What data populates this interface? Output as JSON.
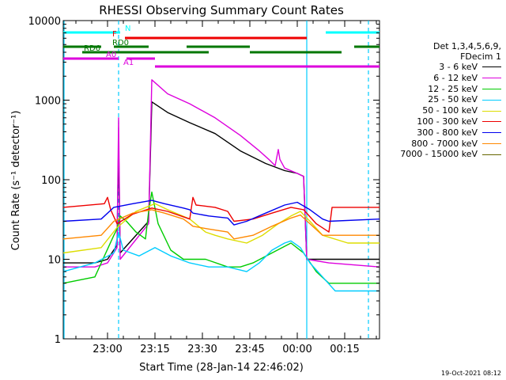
{
  "chart_data": {
    "type": "line",
    "title": "RHESSI Observing Summary Count Rates",
    "xlabel": "Start Time (28-Jan-14 22:46:02)",
    "ylabel": "Count Rate (s⁻¹ detector⁻¹)",
    "y_scale": "log",
    "ylim": [
      1,
      10000
    ],
    "xlim_minutes": [
      0,
      100
    ],
    "x_ticks": [
      {
        "min": 14,
        "label": "23:00"
      },
      {
        "min": 29,
        "label": "23:15"
      },
      {
        "min": 44,
        "label": "23:30"
      },
      {
        "min": 59,
        "label": "23:45"
      },
      {
        "min": 74,
        "label": "00:00"
      },
      {
        "min": 89,
        "label": "00:15"
      }
    ],
    "y_ticks": [
      {
        "value": 1,
        "label": "1"
      },
      {
        "value": 10,
        "label": "10"
      },
      {
        "value": 100,
        "label": "100"
      },
      {
        "value": 1000,
        "label": "1000"
      },
      {
        "value": 10000,
        "label": "10000"
      }
    ],
    "legend_header": [
      "Det 1,3,4,5,6,9,",
      "FDecim 1"
    ],
    "series": [
      {
        "name": "3 - 6 keV",
        "color": "#000000",
        "points": [
          [
            0,
            9
          ],
          [
            10,
            9
          ],
          [
            14,
            10
          ],
          [
            17,
            15
          ],
          [
            17.5,
            300
          ],
          [
            18,
            12
          ],
          [
            27,
            30
          ],
          [
            28,
            950
          ],
          [
            33,
            700
          ],
          [
            40,
            520
          ],
          [
            48,
            380
          ],
          [
            56,
            230
          ],
          [
            64,
            160
          ],
          [
            70,
            130
          ],
          [
            74,
            120
          ],
          [
            76,
            110
          ],
          [
            77,
            10
          ],
          [
            84,
            10
          ],
          [
            100,
            10
          ]
        ]
      },
      {
        "name": "6 - 12 keV",
        "color": "#dd00dd",
        "points": [
          [
            0,
            8
          ],
          [
            10,
            8
          ],
          [
            14,
            9
          ],
          [
            17,
            14
          ],
          [
            17.5,
            600
          ],
          [
            18,
            10
          ],
          [
            27,
            28
          ],
          [
            28,
            1800
          ],
          [
            33,
            1200
          ],
          [
            40,
            900
          ],
          [
            48,
            600
          ],
          [
            56,
            360
          ],
          [
            62,
            230
          ],
          [
            65,
            180
          ],
          [
            67,
            150
          ],
          [
            68,
            240
          ],
          [
            68.5,
            180
          ],
          [
            70,
            140
          ],
          [
            74,
            120
          ],
          [
            76,
            110
          ],
          [
            77,
            10
          ],
          [
            84,
            9
          ],
          [
            100,
            8
          ]
        ]
      },
      {
        "name": "12 - 25 keV",
        "color": "#00cc00",
        "points": [
          [
            0,
            5
          ],
          [
            10,
            6
          ],
          [
            16,
            20
          ],
          [
            17,
            24
          ],
          [
            18,
            35
          ],
          [
            20,
            30
          ],
          [
            23,
            22
          ],
          [
            26,
            18
          ],
          [
            27,
            40
          ],
          [
            28,
            70
          ],
          [
            30,
            28
          ],
          [
            34,
            13
          ],
          [
            38,
            10
          ],
          [
            45,
            10
          ],
          [
            52,
            8
          ],
          [
            56,
            8
          ],
          [
            60,
            9
          ],
          [
            66,
            12
          ],
          [
            72,
            16
          ],
          [
            76,
            12
          ],
          [
            80,
            7
          ],
          [
            84,
            5
          ],
          [
            100,
            5
          ]
        ]
      },
      {
        "name": "25 - 50 keV",
        "color": "#00ccff",
        "points": [
          [
            0,
            7
          ],
          [
            10,
            9
          ],
          [
            16,
            12
          ],
          [
            17.5,
            22
          ],
          [
            19,
            13
          ],
          [
            24,
            11
          ],
          [
            29,
            14
          ],
          [
            34,
            11
          ],
          [
            40,
            9
          ],
          [
            46,
            8
          ],
          [
            52,
            8
          ],
          [
            58,
            7
          ],
          [
            62,
            9
          ],
          [
            66,
            13
          ],
          [
            70,
            16
          ],
          [
            72,
            17
          ],
          [
            75,
            14
          ],
          [
            78,
            9
          ],
          [
            82,
            6
          ],
          [
            86,
            4
          ],
          [
            100,
            4
          ]
        ]
      },
      {
        "name": "50 - 100 keV",
        "color": "#dddd00",
        "points": [
          [
            0,
            12
          ],
          [
            12,
            14
          ],
          [
            17,
            25
          ],
          [
            23,
            40
          ],
          [
            29,
            50
          ],
          [
            33,
            42
          ],
          [
            40,
            32
          ],
          [
            45,
            22
          ],
          [
            48,
            20
          ],
          [
            52,
            18
          ],
          [
            58,
            16
          ],
          [
            63,
            20
          ],
          [
            68,
            28
          ],
          [
            72,
            35
          ],
          [
            75,
            40
          ],
          [
            78,
            30
          ],
          [
            82,
            20
          ],
          [
            90,
            16
          ],
          [
            100,
            16
          ]
        ]
      },
      {
        "name": "100 - 300 keV",
        "color": "#ee0000",
        "points": [
          [
            0,
            45
          ],
          [
            13,
            50
          ],
          [
            14,
            60
          ],
          [
            15,
            42
          ],
          [
            17,
            28
          ],
          [
            22,
            37
          ],
          [
            28,
            44
          ],
          [
            33,
            40
          ],
          [
            40,
            32
          ],
          [
            41,
            60
          ],
          [
            42,
            48
          ],
          [
            48,
            45
          ],
          [
            52,
            40
          ],
          [
            54,
            30
          ],
          [
            60,
            32
          ],
          [
            66,
            38
          ],
          [
            72,
            45
          ],
          [
            76,
            42
          ],
          [
            80,
            28
          ],
          [
            84,
            22
          ],
          [
            85,
            45
          ],
          [
            100,
            45
          ]
        ]
      },
      {
        "name": "300 - 800 keV",
        "color": "#0000ee",
        "points": [
          [
            0,
            30
          ],
          [
            12,
            32
          ],
          [
            16,
            45
          ],
          [
            22,
            50
          ],
          [
            28,
            55
          ],
          [
            32,
            50
          ],
          [
            38,
            44
          ],
          [
            40,
            42
          ],
          [
            41,
            38
          ],
          [
            46,
            35
          ],
          [
            52,
            33
          ],
          [
            54,
            27
          ],
          [
            58,
            30
          ],
          [
            64,
            38
          ],
          [
            70,
            48
          ],
          [
            74,
            52
          ],
          [
            78,
            42
          ],
          [
            82,
            32
          ],
          [
            84,
            30
          ],
          [
            100,
            32
          ]
        ]
      },
      {
        "name": "800 - 7000 keV",
        "color": "#ff8800",
        "points": [
          [
            0,
            18
          ],
          [
            12,
            20
          ],
          [
            16,
            30
          ],
          [
            22,
            38
          ],
          [
            28,
            42
          ],
          [
            32,
            38
          ],
          [
            38,
            32
          ],
          [
            40,
            28
          ],
          [
            41,
            26
          ],
          [
            46,
            24
          ],
          [
            52,
            22
          ],
          [
            54,
            18
          ],
          [
            60,
            20
          ],
          [
            66,
            26
          ],
          [
            72,
            33
          ],
          [
            75,
            36
          ],
          [
            78,
            28
          ],
          [
            82,
            20
          ],
          [
            100,
            20
          ]
        ]
      },
      {
        "name": "7000 - 15000 keV",
        "color": "#666600",
        "points": []
      }
    ],
    "state_bars": [
      {
        "label": "N",
        "color": "#00ffff",
        "segments": [
          [
            0,
            18
          ],
          [
            83,
            100
          ]
        ]
      },
      {
        "label": "F",
        "color": "#ee0000",
        "segments": [
          [
            19.5,
            77
          ]
        ]
      },
      {
        "label": "RD0",
        "color": "#007700",
        "segments": [
          [
            0,
            12
          ],
          [
            16,
            27
          ],
          [
            39,
            59
          ],
          [
            92,
            100
          ]
        ]
      },
      {
        "label": "RD6",
        "color": "#007700",
        "segments": [
          [
            6,
            46
          ],
          [
            59,
            88
          ]
        ]
      },
      {
        "label": "A0",
        "color": "#dd00dd",
        "segments": [
          [
            0,
            17.5
          ],
          [
            20,
            29
          ]
        ]
      },
      {
        "label": "A1",
        "color": "#dd00dd",
        "segments": [
          [
            29,
            100
          ]
        ]
      }
    ],
    "vertical_markers": [
      {
        "min": 17.5,
        "style": "dashed",
        "color": "#00ccff"
      },
      {
        "min": 77,
        "style": "solid",
        "color": "#00ccff"
      },
      {
        "min": 96.5,
        "style": "dashed",
        "color": "#00ccff"
      }
    ]
  },
  "footer_date": "19-Oct-2021 08:12"
}
